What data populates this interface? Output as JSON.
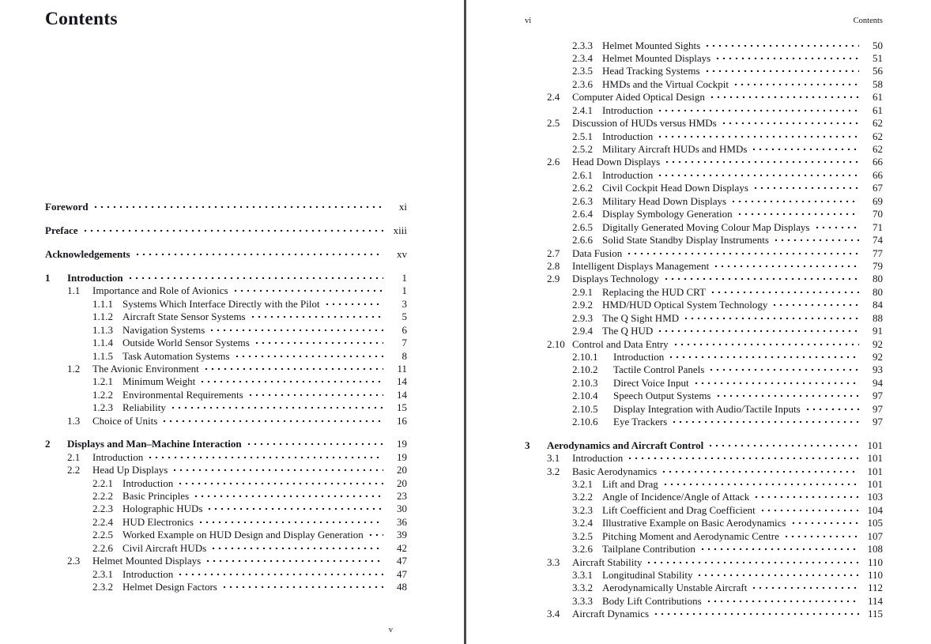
{
  "colors": {
    "text": "#14141c",
    "divider": "#4a4a4a",
    "background": "#ffffff"
  },
  "left_page": {
    "title": "Contents",
    "footer_page_number": "v",
    "front_matter": [
      {
        "label": "Foreword",
        "page": "xi"
      },
      {
        "label": "Preface",
        "page": "xiii"
      },
      {
        "label": "Acknowledgements",
        "page": "xv"
      }
    ],
    "entries": [
      {
        "num": "1",
        "title": "Introduction",
        "page": "1",
        "level": 0,
        "bold": true
      },
      {
        "num": "1.1",
        "title": "Importance and Role of Avionics",
        "page": "1",
        "level": 1
      },
      {
        "num": "1.1.1",
        "title": "Systems Which Interface Directly with the Pilot",
        "page": "3",
        "level": 2
      },
      {
        "num": "1.1.2",
        "title": "Aircraft State Sensor Systems",
        "page": "5",
        "level": 2
      },
      {
        "num": "1.1.3",
        "title": "Navigation Systems",
        "page": "6",
        "level": 2
      },
      {
        "num": "1.1.4",
        "title": "Outside World Sensor Systems",
        "page": "7",
        "level": 2
      },
      {
        "num": "1.1.5",
        "title": "Task Automation Systems",
        "page": "8",
        "level": 2
      },
      {
        "num": "1.2",
        "title": "The Avionic Environment",
        "page": "11",
        "level": 1
      },
      {
        "num": "1.2.1",
        "title": "Minimum Weight",
        "page": "14",
        "level": 2
      },
      {
        "num": "1.2.2",
        "title": "Environmental Requirements",
        "page": "14",
        "level": 2
      },
      {
        "num": "1.2.3",
        "title": "Reliability",
        "page": "15",
        "level": 2
      },
      {
        "num": "1.3",
        "title": "Choice of Units",
        "page": "16",
        "level": 1
      },
      {
        "num": "2",
        "title": "Displays and Man–Machine Interaction",
        "page": "19",
        "level": 0,
        "bold": true,
        "gap_before": true
      },
      {
        "num": "2.1",
        "title": "Introduction",
        "page": "19",
        "level": 1
      },
      {
        "num": "2.2",
        "title": "Head Up Displays",
        "page": "20",
        "level": 1
      },
      {
        "num": "2.2.1",
        "title": "Introduction",
        "page": "20",
        "level": 2
      },
      {
        "num": "2.2.2",
        "title": "Basic Principles",
        "page": "23",
        "level": 2
      },
      {
        "num": "2.2.3",
        "title": "Holographic HUDs",
        "page": "30",
        "level": 2
      },
      {
        "num": "2.2.4",
        "title": "HUD Electronics",
        "page": "36",
        "level": 2
      },
      {
        "num": "2.2.5",
        "title": "Worked Example on HUD Design and Display Generation",
        "page": "39",
        "level": 2
      },
      {
        "num": "2.2.6",
        "title": "Civil Aircraft HUDs",
        "page": "42",
        "level": 2
      },
      {
        "num": "2.3",
        "title": "Helmet Mounted Displays",
        "page": "47",
        "level": 1
      },
      {
        "num": "2.3.1",
        "title": "Introduction",
        "page": "47",
        "level": 2
      },
      {
        "num": "2.3.2",
        "title": "Helmet Design Factors",
        "page": "48",
        "level": 2
      }
    ]
  },
  "right_page": {
    "header_left": "vi",
    "header_right": "Contents",
    "entries": [
      {
        "num": "2.3.3",
        "title": "Helmet Mounted Sights",
        "page": "50",
        "level": 2
      },
      {
        "num": "2.3.4",
        "title": "Helmet Mounted Displays",
        "page": "51",
        "level": 2
      },
      {
        "num": "2.3.5",
        "title": "Head Tracking Systems",
        "page": "56",
        "level": 2
      },
      {
        "num": "2.3.6",
        "title": "HMDs and the Virtual Cockpit",
        "page": "58",
        "level": 2
      },
      {
        "num": "2.4",
        "title": "Computer Aided Optical Design",
        "page": "61",
        "level": 1
      },
      {
        "num": "2.4.1",
        "title": "Introduction",
        "page": "61",
        "level": 2
      },
      {
        "num": "2.5",
        "title": "Discussion of HUDs versus HMDs",
        "page": "62",
        "level": 1
      },
      {
        "num": "2.5.1",
        "title": "Introduction",
        "page": "62",
        "level": 2
      },
      {
        "num": "2.5.2",
        "title": "Military Aircraft HUDs and HMDs",
        "page": "62",
        "level": 2
      },
      {
        "num": "2.6",
        "title": "Head Down Displays",
        "page": "66",
        "level": 1
      },
      {
        "num": "2.6.1",
        "title": "Introduction",
        "page": "66",
        "level": 2
      },
      {
        "num": "2.6.2",
        "title": "Civil Cockpit Head Down Displays",
        "page": "67",
        "level": 2
      },
      {
        "num": "2.6.3",
        "title": "Military Head Down Displays",
        "page": "69",
        "level": 2
      },
      {
        "num": "2.6.4",
        "title": "Display Symbology Generation",
        "page": "70",
        "level": 2
      },
      {
        "num": "2.6.5",
        "title": "Digitally Generated Moving Colour Map Displays",
        "page": "71",
        "level": 2
      },
      {
        "num": "2.6.6",
        "title": "Solid State Standby Display Instruments",
        "page": "74",
        "level": 2
      },
      {
        "num": "2.7",
        "title": "Data Fusion",
        "page": "77",
        "level": 1
      },
      {
        "num": "2.8",
        "title": "Intelligent Displays Management",
        "page": "79",
        "level": 1
      },
      {
        "num": "2.9",
        "title": "Displays Technology",
        "page": "80",
        "level": 1
      },
      {
        "num": "2.9.1",
        "title": "Replacing the HUD CRT",
        "page": "80",
        "level": 2
      },
      {
        "num": "2.9.2",
        "title": "HMD/HUD Optical System Technology",
        "page": "84",
        "level": 2
      },
      {
        "num": "2.9.3",
        "title": "The Q Sight HMD",
        "page": "88",
        "level": 2
      },
      {
        "num": "2.9.4",
        "title": "The Q HUD",
        "page": "91",
        "level": 2
      },
      {
        "num": "2.10",
        "title": "Control and Data Entry",
        "page": "92",
        "level": 1
      },
      {
        "num": "2.10.1",
        "title": "Introduction",
        "page": "92",
        "level": 2
      },
      {
        "num": "2.10.2",
        "title": "Tactile Control Panels",
        "page": "93",
        "level": 2
      },
      {
        "num": "2.10.3",
        "title": "Direct Voice Input",
        "page": "94",
        "level": 2
      },
      {
        "num": "2.10.4",
        "title": "Speech Output Systems",
        "page": "97",
        "level": 2
      },
      {
        "num": "2.10.5",
        "title": "Display Integration with Audio/Tactile Inputs",
        "page": "97",
        "level": 2
      },
      {
        "num": "2.10.6",
        "title": "Eye Trackers",
        "page": "97",
        "level": 2
      },
      {
        "num": "3",
        "title": "Aerodynamics and Aircraft Control",
        "page": "101",
        "level": 0,
        "bold": true,
        "gap_before": true
      },
      {
        "num": "3.1",
        "title": "Introduction",
        "page": "101",
        "level": 1
      },
      {
        "num": "3.2",
        "title": "Basic Aerodynamics",
        "page": "101",
        "level": 1
      },
      {
        "num": "3.2.1",
        "title": "Lift and Drag",
        "page": "101",
        "level": 2
      },
      {
        "num": "3.2.2",
        "title": "Angle of Incidence/Angle of Attack",
        "page": "103",
        "level": 2
      },
      {
        "num": "3.2.3",
        "title": "Lift Coefficient and Drag Coefficient",
        "page": "104",
        "level": 2
      },
      {
        "num": "3.2.4",
        "title": "Illustrative Example on Basic Aerodynamics",
        "page": "105",
        "level": 2
      },
      {
        "num": "3.2.5",
        "title": "Pitching Moment and Aerodynamic Centre",
        "page": "107",
        "level": 2
      },
      {
        "num": "3.2.6",
        "title": "Tailplane Contribution",
        "page": "108",
        "level": 2
      },
      {
        "num": "3.3",
        "title": "Aircraft Stability",
        "page": "110",
        "level": 1
      },
      {
        "num": "3.3.1",
        "title": "Longitudinal Stability",
        "page": "110",
        "level": 2
      },
      {
        "num": "3.3.2",
        "title": "Aerodynamically Unstable Aircraft",
        "page": "112",
        "level": 2
      },
      {
        "num": "3.3.3",
        "title": "Body Lift Contributions",
        "page": "114",
        "level": 2
      },
      {
        "num": "3.4",
        "title": "Aircraft Dynamics",
        "page": "115",
        "level": 1
      }
    ]
  }
}
